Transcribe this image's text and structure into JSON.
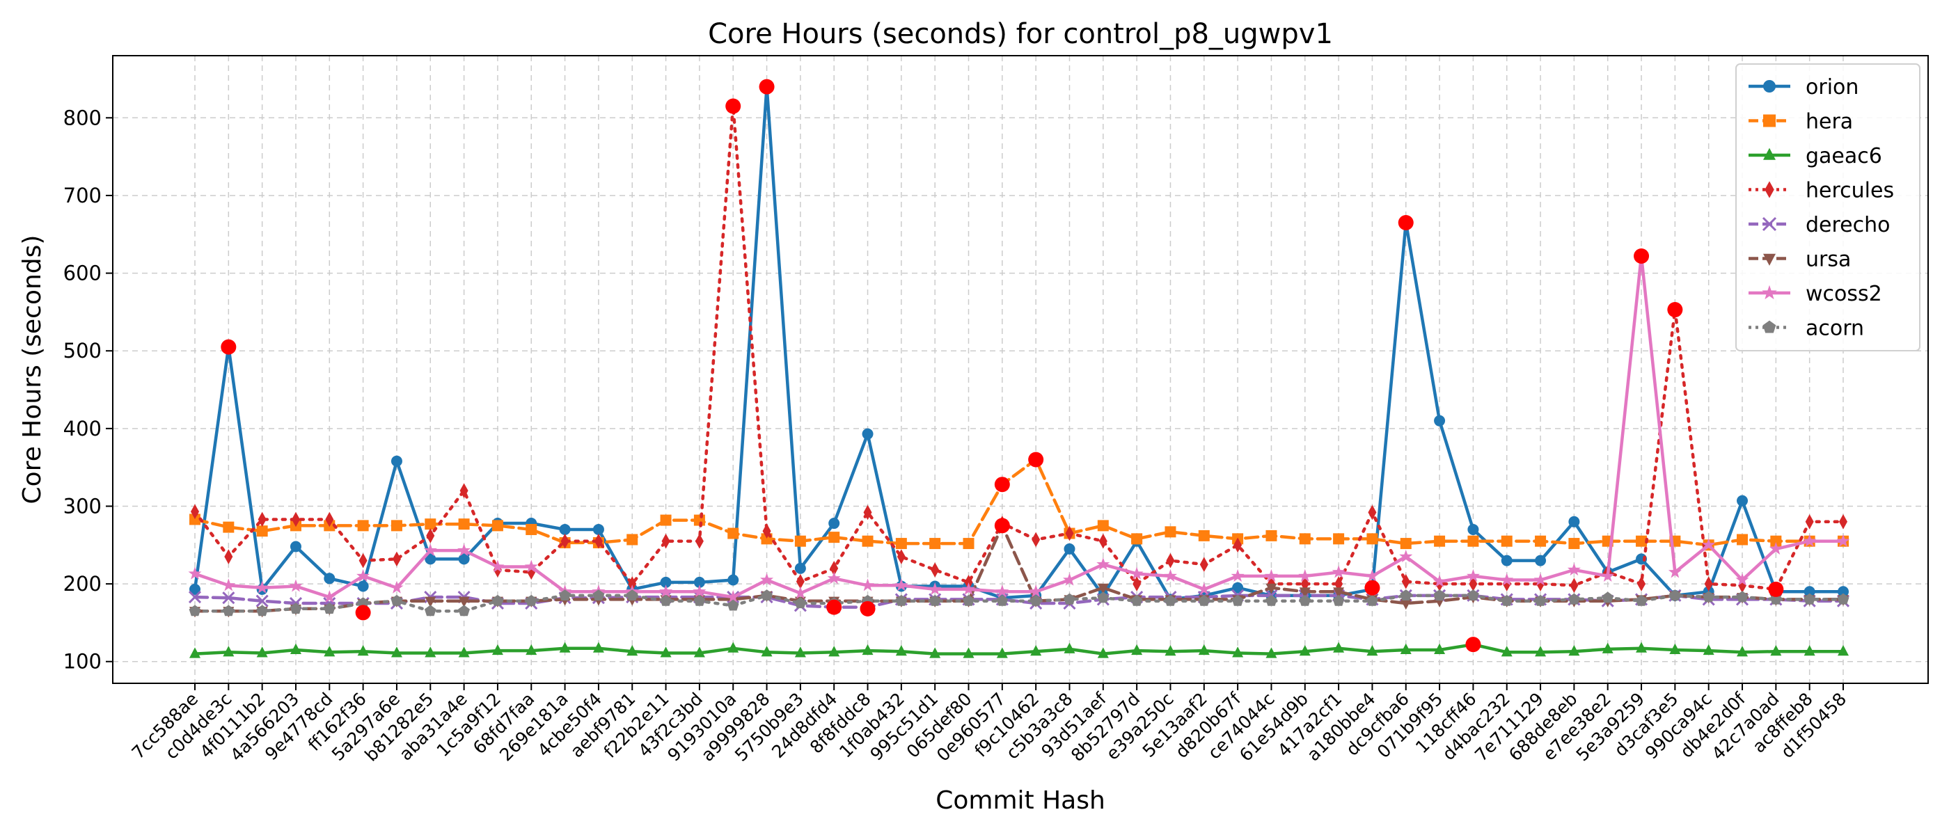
{
  "chart_data": {
    "type": "line",
    "title": "Core Hours (seconds) for control_p8_ugwpv1",
    "xlabel": "Commit Hash",
    "ylabel": "Core Hours (seconds)",
    "ylim": [
      72,
      880
    ],
    "yticks": [
      100,
      200,
      300,
      400,
      500,
      600,
      700,
      800
    ],
    "grid": true,
    "legend_position": "top-right",
    "categories": [
      "7cc588ae",
      "c0d4de3c",
      "4f0111b2",
      "4a566203",
      "9e4778cd",
      "ff162f36",
      "5a297a6e",
      "b81282e5",
      "aba31a4e",
      "1c5a9f12",
      "68fd7faa",
      "269e181a",
      "4cbe50f4",
      "aebf9781",
      "f22b2e11",
      "43f2c3bd",
      "9193010a",
      "a9999828",
      "5750b9e3",
      "24d8dfd4",
      "8f8fddc8",
      "1f0ab432",
      "995c51d1",
      "065def80",
      "0e960577",
      "f9c10462",
      "c5b3a3c8",
      "93d51aef",
      "8b52797d",
      "e39a250c",
      "5e13aaf2",
      "d820b67f",
      "ce74044c",
      "61e54d9b",
      "417a2cf1",
      "a180bbe4",
      "dc9cfba6",
      "071b9f95",
      "118cff46",
      "d4bac232",
      "7e711129",
      "688de8eb",
      "e7ee38e2",
      "5e3a9259",
      "d3caf3e5",
      "990ca94c",
      "db4e2d0f",
      "42c7a0ad",
      "ac8ffeb8",
      "d1f50458"
    ],
    "series": [
      {
        "name": "orion",
        "color": "#1f77b4",
        "dash": "",
        "marker": "circle",
        "values": [
          193,
          505,
          193,
          248,
          207,
          197,
          358,
          232,
          232,
          278,
          278,
          270,
          270,
          193,
          202,
          202,
          205,
          840,
          220,
          278,
          393,
          197,
          197,
          197,
          182,
          185,
          245,
          185,
          255,
          180,
          185,
          195,
          185,
          185,
          185,
          193,
          665,
          410,
          270,
          230,
          230,
          280,
          215,
          232,
          185,
          190,
          307,
          190,
          190,
          190
        ]
      },
      {
        "name": "hera",
        "color": "#ff7f0e",
        "dash": "18,8",
        "marker": "square",
        "values": [
          283,
          273,
          268,
          275,
          275,
          275,
          275,
          277,
          277,
          275,
          270,
          253,
          253,
          257,
          282,
          282,
          265,
          258,
          255,
          260,
          255,
          252,
          252,
          252,
          328,
          360,
          265,
          275,
          258,
          267,
          262,
          258,
          262,
          258,
          258,
          258,
          252,
          255,
          255,
          255,
          255,
          252,
          255,
          255,
          255,
          250,
          257,
          255,
          255,
          255
        ]
      },
      {
        "name": "gaeac6",
        "color": "#2ca02c",
        "dash": "",
        "marker": "triangle",
        "values": [
          110,
          112,
          111,
          115,
          112,
          113,
          111,
          111,
          111,
          114,
          114,
          117,
          117,
          113,
          111,
          111,
          117,
          112,
          111,
          112,
          114,
          113,
          110,
          110,
          110,
          113,
          116,
          110,
          114,
          113,
          114,
          111,
          110,
          113,
          117,
          113,
          115,
          115,
          122,
          112,
          112,
          113,
          116,
          117,
          115,
          114,
          112,
          113,
          113,
          113
        ]
      },
      {
        "name": "hercules",
        "color": "#d62728",
        "dash": "4,9",
        "marker": "diamond",
        "values": [
          293,
          235,
          283,
          283,
          283,
          230,
          232,
          262,
          320,
          218,
          215,
          255,
          255,
          200,
          255,
          255,
          815,
          268,
          203,
          220,
          292,
          235,
          218,
          202,
          278,
          257,
          265,
          255,
          200,
          230,
          225,
          250,
          200,
          200,
          200,
          292,
          203,
          200,
          200,
          200,
          200,
          198,
          215,
          200,
          553,
          200,
          198,
          193,
          280,
          280
        ]
      },
      {
        "name": "derecho",
        "color": "#9467bd",
        "dash": "18,8",
        "marker": "x",
        "values": [
          183,
          182,
          178,
          175,
          175,
          175,
          175,
          183,
          183,
          175,
          175,
          182,
          182,
          183,
          183,
          183,
          183,
          183,
          172,
          170,
          170,
          180,
          180,
          180,
          180,
          175,
          175,
          180,
          183,
          183,
          183,
          185,
          185,
          185,
          185,
          180,
          185,
          185,
          185,
          180,
          180,
          180,
          178,
          180,
          185,
          180,
          180,
          180,
          178,
          178
        ]
      },
      {
        "name": "ursa",
        "color": "#8c564b",
        "dash": "18,8",
        "marker": "triangle-down",
        "values": [
          165,
          165,
          165,
          168,
          168,
          175,
          178,
          178,
          178,
          178,
          178,
          180,
          180,
          180,
          180,
          180,
          180,
          185,
          178,
          178,
          178,
          178,
          178,
          178,
          275,
          178,
          180,
          195,
          180,
          180,
          180,
          180,
          195,
          190,
          190,
          180,
          175,
          178,
          183,
          178,
          178,
          178,
          178,
          180,
          185,
          183,
          183,
          180,
          180,
          180
        ]
      },
      {
        "name": "wcoss2",
        "color": "#e377c2",
        "dash": "",
        "marker": "star",
        "values": [
          213,
          198,
          195,
          197,
          183,
          210,
          195,
          243,
          243,
          222,
          222,
          190,
          190,
          190,
          190,
          190,
          183,
          205,
          188,
          207,
          198,
          198,
          193,
          193,
          190,
          190,
          205,
          225,
          213,
          210,
          193,
          210,
          210,
          210,
          215,
          210,
          235,
          203,
          210,
          205,
          205,
          218,
          210,
          622,
          215,
          250,
          205,
          245,
          255,
          255
        ]
      },
      {
        "name": "acorn",
        "color": "#7f7f7f",
        "dash": "4,9",
        "marker": "pentagon",
        "values": [
          165,
          165,
          165,
          168,
          168,
          175,
          178,
          165,
          165,
          178,
          178,
          185,
          185,
          185,
          178,
          178,
          172,
          185,
          175,
          175,
          178,
          178,
          178,
          178,
          178,
          178,
          180,
          182,
          178,
          178,
          178,
          178,
          178,
          178,
          178,
          178,
          185,
          185,
          185,
          178,
          178,
          180,
          182,
          178,
          185,
          183,
          183,
          180,
          180,
          180
        ]
      }
    ],
    "highlights": [
      {
        "category": "c0d4de3c",
        "value": 505
      },
      {
        "category": "ff162f36",
        "value": 163
      },
      {
        "category": "9193010a",
        "value": 815
      },
      {
        "category": "a9999828",
        "value": 840
      },
      {
        "category": "24d8dfd4",
        "value": 170
      },
      {
        "category": "8f8fddc8",
        "value": 168
      },
      {
        "category": "0e960577",
        "value": 328
      },
      {
        "category": "0e960577",
        "value": 275
      },
      {
        "category": "f9c10462",
        "value": 360
      },
      {
        "category": "a180bbe4",
        "value": 195
      },
      {
        "category": "dc9cfba6",
        "value": 665
      },
      {
        "category": "118cff46",
        "value": 122
      },
      {
        "category": "5e3a9259",
        "value": 622
      },
      {
        "category": "d3caf3e5",
        "value": 553
      },
      {
        "category": "42c7a0ad",
        "value": 193
      }
    ],
    "highlight_color": "#ff0000"
  }
}
